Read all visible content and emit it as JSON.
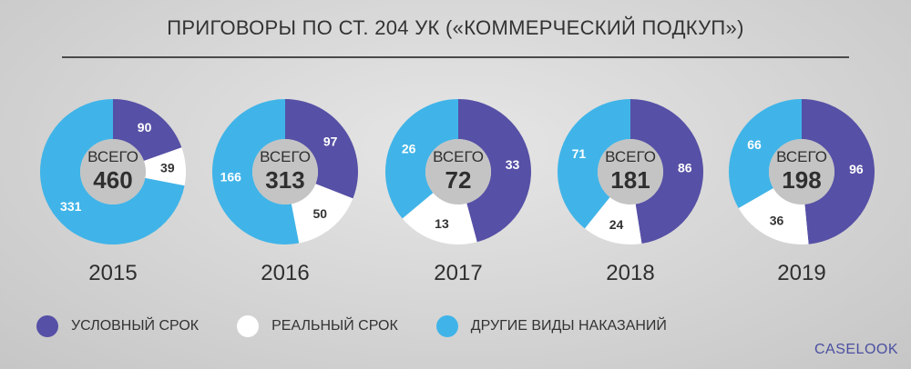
{
  "chart_data": {
    "type": "pie",
    "title": "ПРИГОВОРЫ ПО СТ. 204 УК («КОММЕРЧЕСКИЙ ПОДКУП»)",
    "total_label": "ВСЕГО",
    "categories": [
      "УСЛОВНЫЙ СРОК",
      "РЕАЛЬНЫЙ СРОК",
      "ДРУГИЕ ВИДЫ НАКАЗАНИЙ"
    ],
    "colors": [
      "#5650a6",
      "#ffffff",
      "#40b4e8"
    ],
    "charts": [
      {
        "year": "2015",
        "total": "460",
        "values": [
          90,
          39,
          331
        ]
      },
      {
        "year": "2016",
        "total": "313",
        "values": [
          97,
          50,
          166
        ]
      },
      {
        "year": "2017",
        "total": "72",
        "values": [
          33,
          13,
          26
        ]
      },
      {
        "year": "2018",
        "total": "181",
        "values": [
          86,
          24,
          71
        ]
      },
      {
        "year": "2019",
        "total": "198",
        "values": [
          96,
          36,
          66
        ]
      }
    ]
  },
  "legend": {
    "items": [
      {
        "label": "УСЛОВНЫЙ СРОК",
        "color": "#5650a6"
      },
      {
        "label": "РЕАЛЬНЫЙ СРОК",
        "color": "#ffffff"
      },
      {
        "label": "ДРУГИЕ ВИДЫ НАКАЗАНИЙ",
        "color": "#40b4e8"
      }
    ]
  },
  "brand": "CASELOOK"
}
